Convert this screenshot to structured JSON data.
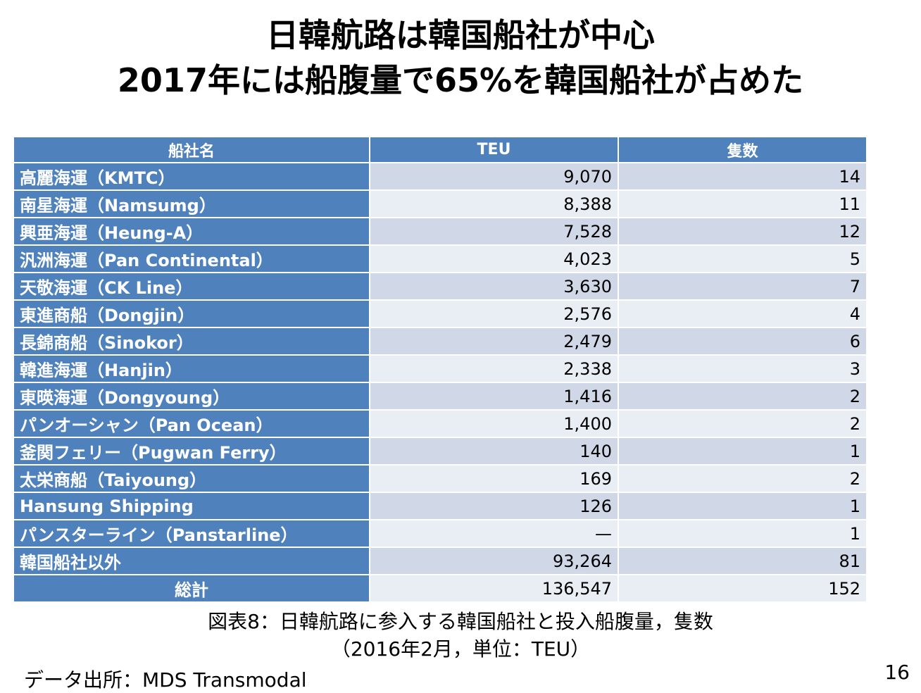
{
  "title_line1": "日韓航路は韓国船社が中心",
  "title_line2": "2017年には船腹量で65%を韓国船社が占めた",
  "table": {
    "headers": [
      "船社名",
      "TEU",
      "隻数"
    ],
    "rows": [
      {
        "name": "高麗海運（KMTC）",
        "teu": "9,070",
        "ships": "14"
      },
      {
        "name": "南星海運（Namsumg）",
        "teu": "8,388",
        "ships": "11"
      },
      {
        "name": "興亜海運（Heung-A）",
        "teu": "7,528",
        "ships": "12"
      },
      {
        "name": "汎洲海運（Pan Continental）",
        "teu": "4,023",
        "ships": "5"
      },
      {
        "name": "天敬海運（CK Line）",
        "teu": "3,630",
        "ships": "7"
      },
      {
        "name": "東進商船（Dongjin）",
        "teu": "2,576",
        "ships": "4"
      },
      {
        "name": "長錦商船（Sinokor）",
        "teu": "2,479",
        "ships": "6"
      },
      {
        "name": "韓進海運（Hanjin）",
        "teu": "2,338",
        "ships": "3"
      },
      {
        "name": "東暎海運（Dongyoung）",
        "teu": "1,416",
        "ships": "2"
      },
      {
        "name": "パンオーシャン（Pan Ocean）",
        "teu": "1,400",
        "ships": "2"
      },
      {
        "name": "釜関フェリー（Pugwan Ferry）",
        "teu": "140",
        "ships": "1"
      },
      {
        "name": "太栄商船（Taiyoung）",
        "teu": "169",
        "ships": "2"
      },
      {
        "name": "Hansung Shipping",
        "teu": "126",
        "ships": "1"
      },
      {
        "name": "パンスターライン（Panstarline）",
        "teu": "—",
        "ships": "1"
      },
      {
        "name": "韓国船社以外",
        "teu": "93,264",
        "ships": "81"
      },
      {
        "name": "総計",
        "teu": "136,547",
        "ships": "152"
      }
    ]
  },
  "caption_line1": "図表8：日韓航路に参入する韓国船社と投入船腹量，隻数",
  "caption_line2": "（2016年2月，単位：TEU）",
  "source": "データ出所：MDS Transmodal",
  "page_number": "16"
}
